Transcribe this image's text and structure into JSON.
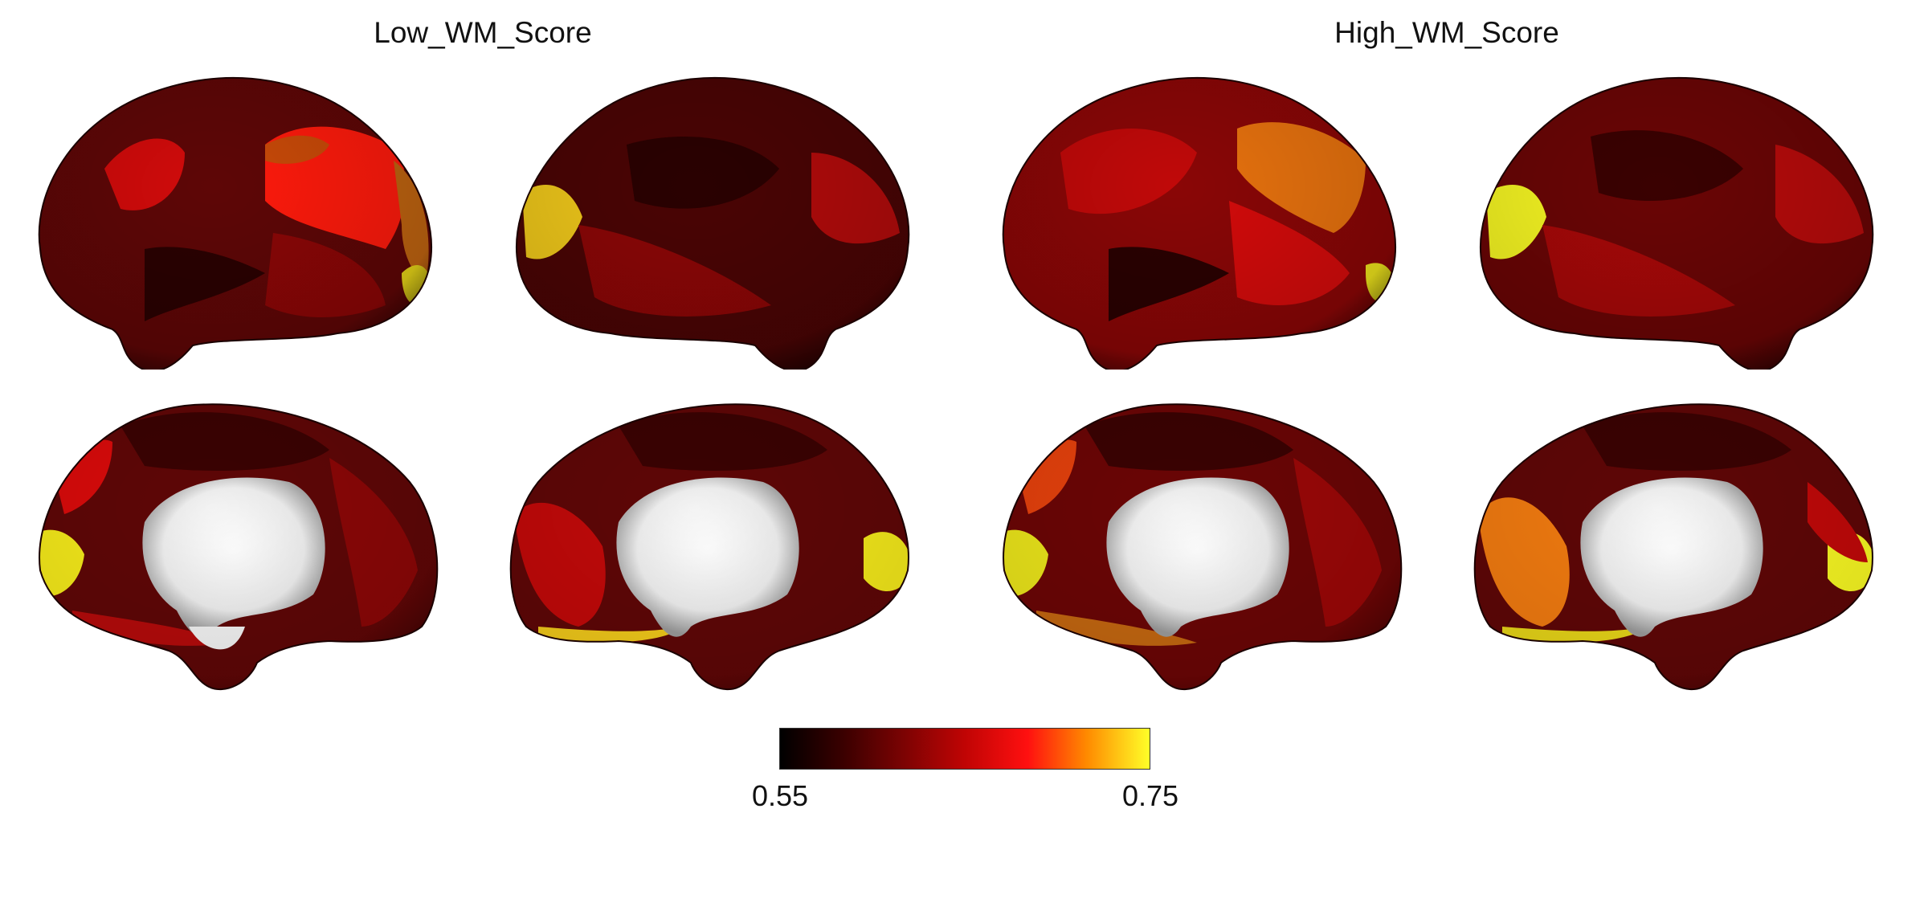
{
  "panels": [
    {
      "title": "Low_WM_Score"
    },
    {
      "title": "High_WM_Score"
    }
  ],
  "colorbar": {
    "min_label": "0.55",
    "max_label": "0.75",
    "colormap": [
      "#000000",
      "#3a0000",
      "#7a0303",
      "#c00404",
      "#ff1010",
      "#ff8a00",
      "#ffff28"
    ]
  },
  "colors": {
    "base": "#5e0606",
    "dark": "#2a0101",
    "red": "#b30b0b",
    "bright_red": "#ff1a0c",
    "orange": "#f07a10",
    "yellow": "#f3e81a",
    "yellow_bright": "#f7f722",
    "medial_wall": "#f2f2f2"
  }
}
